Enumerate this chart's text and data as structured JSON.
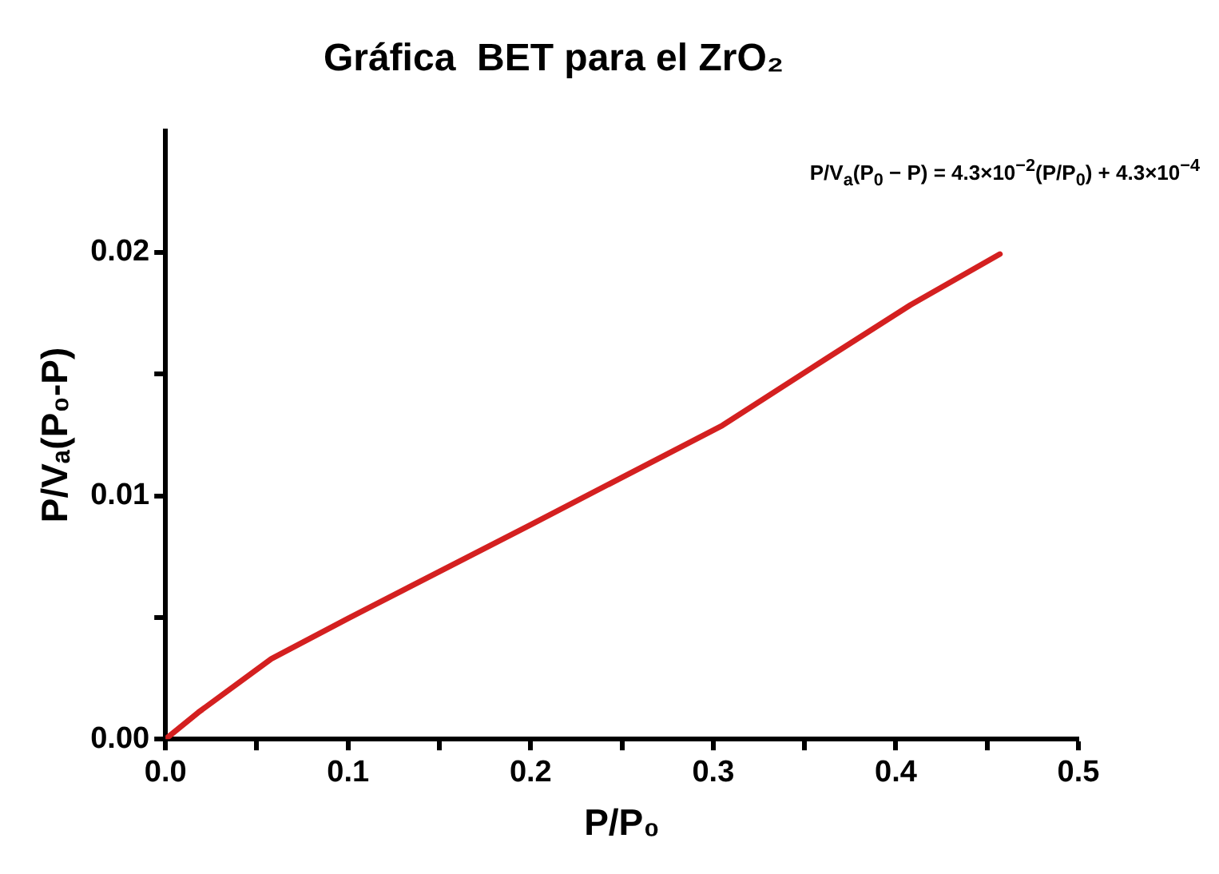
{
  "chart_data": {
    "type": "line",
    "title": "Gráfica  BET para el ZrO₂",
    "xlabel": "P/P₀",
    "ylabel": "P/Vₐ(P₀-P)",
    "x": [
      0,
      0.018,
      0.058,
      0.1,
      0.2,
      0.305,
      0.362,
      0.408,
      0.457
    ],
    "series": [
      {
        "color": "#d42020",
        "values": [
          0,
          0.0011,
          0.0033,
          0.00496,
          0.00881,
          0.01289,
          0.01564,
          0.01784,
          0.01993
        ]
      }
    ],
    "xlim": [
      0,
      0.5
    ],
    "ylim": [
      0,
      0.025
    ],
    "xticks": [
      {
        "value": 0,
        "label": "0.0"
      },
      {
        "value": 0.05,
        "label": null
      },
      0.1,
      {
        "value": 0.15,
        "label": null
      },
      0.2,
      {
        "value": 0.25,
        "label": null
      },
      0.3,
      {
        "value": 0.35,
        "label": null
      },
      0.4,
      {
        "value": 0.45,
        "label": null
      },
      0.5
    ],
    "yticks": [
      {
        "value": 0,
        "label": "0.00"
      },
      {
        "value": 0.005,
        "label": null
      },
      0.01,
      {
        "value": 0.015,
        "label": null
      },
      0.02
    ],
    "annotations": [
      "P/V$_{a}$(P$_{0}$ − P) = 4.3×10$^{−2}$(P/P$_{0}$) + 4.3×10$^{−4}$"
    ],
    "grid": false,
    "legend": false,
    "marker": "none",
    "line_style": "solid"
  }
}
